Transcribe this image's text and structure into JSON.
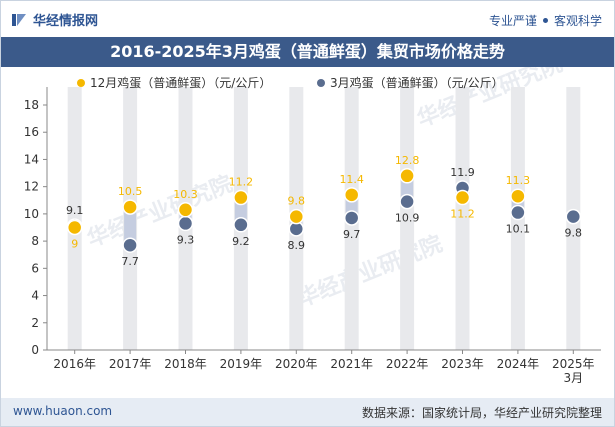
{
  "header": {
    "brand": "华经情报网",
    "tag_left": "专业严谨",
    "tag_right": "客观科学"
  },
  "title": "2016-2025年3月鸡蛋（普通鲜蛋）集贸市场价格走势",
  "footer": {
    "website": "www.huaon.com",
    "source": "数据来源：国家统计局，华经产业研究院整理"
  },
  "watermark": "华经产业研究院",
  "colors": {
    "series_dec": "#f5b800",
    "series_mar": "#5a6d8f",
    "band": "#e8e9ec",
    "connector": "#c5cde0",
    "title_bg": "#3b5a8a"
  },
  "chart_data": {
    "type": "scatter",
    "categories": [
      "2016年",
      "2017年",
      "2018年",
      "2019年",
      "2020年",
      "2021年",
      "2022年",
      "2023年",
      "2024年",
      "2025年\n3月"
    ],
    "series": [
      {
        "name": "12月鸡蛋（普通鲜蛋）（元/公斤）",
        "values": [
          9,
          10.5,
          10.3,
          11.2,
          9.8,
          11.4,
          12.8,
          11.2,
          11.3,
          null
        ]
      },
      {
        "name": "3月鸡蛋（普通鲜蛋）（元/公斤）",
        "values": [
          9.1,
          7.7,
          9.3,
          9.2,
          8.9,
          9.7,
          10.9,
          11.9,
          10.1,
          9.8
        ]
      }
    ],
    "ylim": [
      0,
      18
    ],
    "yticks": [
      0,
      2,
      4,
      6,
      8,
      10,
      12,
      14,
      16,
      18
    ],
    "legend": "top"
  }
}
